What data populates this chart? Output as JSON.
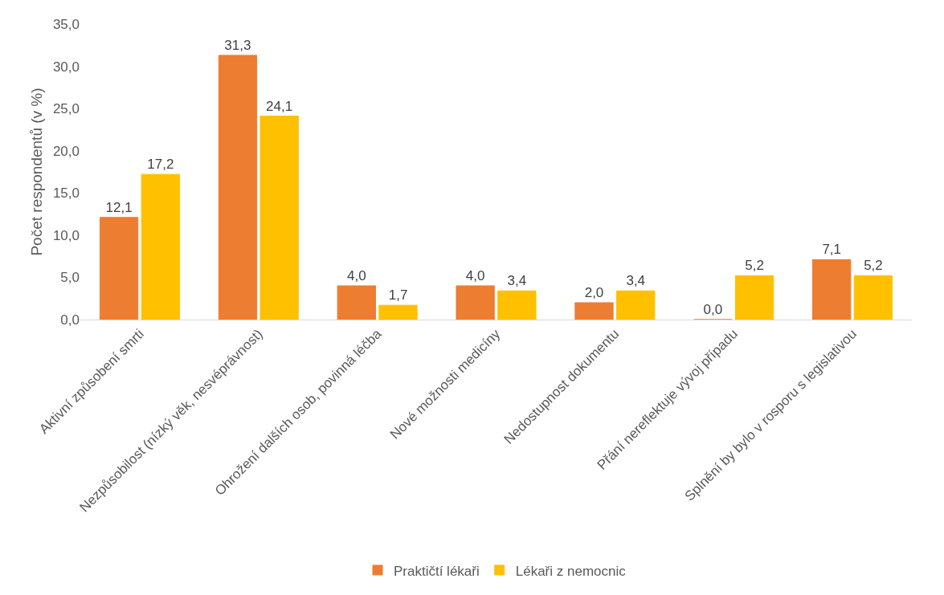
{
  "chart_data": {
    "type": "bar",
    "ylabel": "Počet respondentů (v %)",
    "categories": [
      "Aktivní způsobení smrti",
      "Nezpůsobilost (nízký věk, nesvéprávnost)",
      "Ohrožení dalších osob, povinná léčba",
      "Nové možnosti medicíny",
      "Nedostupnost dokumentu",
      "Přání nereflektuje vývoj případu",
      "Splnění by bylo v rosporu s legislativou"
    ],
    "series": [
      {
        "name": "Praktičtí lékaři",
        "color": "#ed7d31",
        "values": [
          12.1,
          31.3,
          4.0,
          4.0,
          2.0,
          0.0,
          7.1
        ],
        "value_labels": [
          "12,1",
          "31,3",
          "4,0",
          "4,0",
          "2,0",
          "0,0",
          "7,1"
        ]
      },
      {
        "name": "Lékaři z nemocnic",
        "color": "#ffc000",
        "values": [
          17.2,
          24.1,
          1.7,
          3.4,
          3.4,
          5.2,
          5.2
        ],
        "value_labels": [
          "17,2",
          "24,1",
          "1,7",
          "3,4",
          "3,4",
          "5,2",
          "5,2"
        ]
      }
    ],
    "ylim": [
      0,
      35
    ],
    "yticks": [
      {
        "value": 0,
        "label": "0,0"
      },
      {
        "value": 5,
        "label": "5,0"
      },
      {
        "value": 10,
        "label": "10,0"
      },
      {
        "value": 15,
        "label": "15,0"
      },
      {
        "value": 20,
        "label": "20,0"
      },
      {
        "value": 25,
        "label": "25,0"
      },
      {
        "value": 30,
        "label": "30,0"
      },
      {
        "value": 35,
        "label": "35,0"
      }
    ],
    "legend": "bottom"
  }
}
